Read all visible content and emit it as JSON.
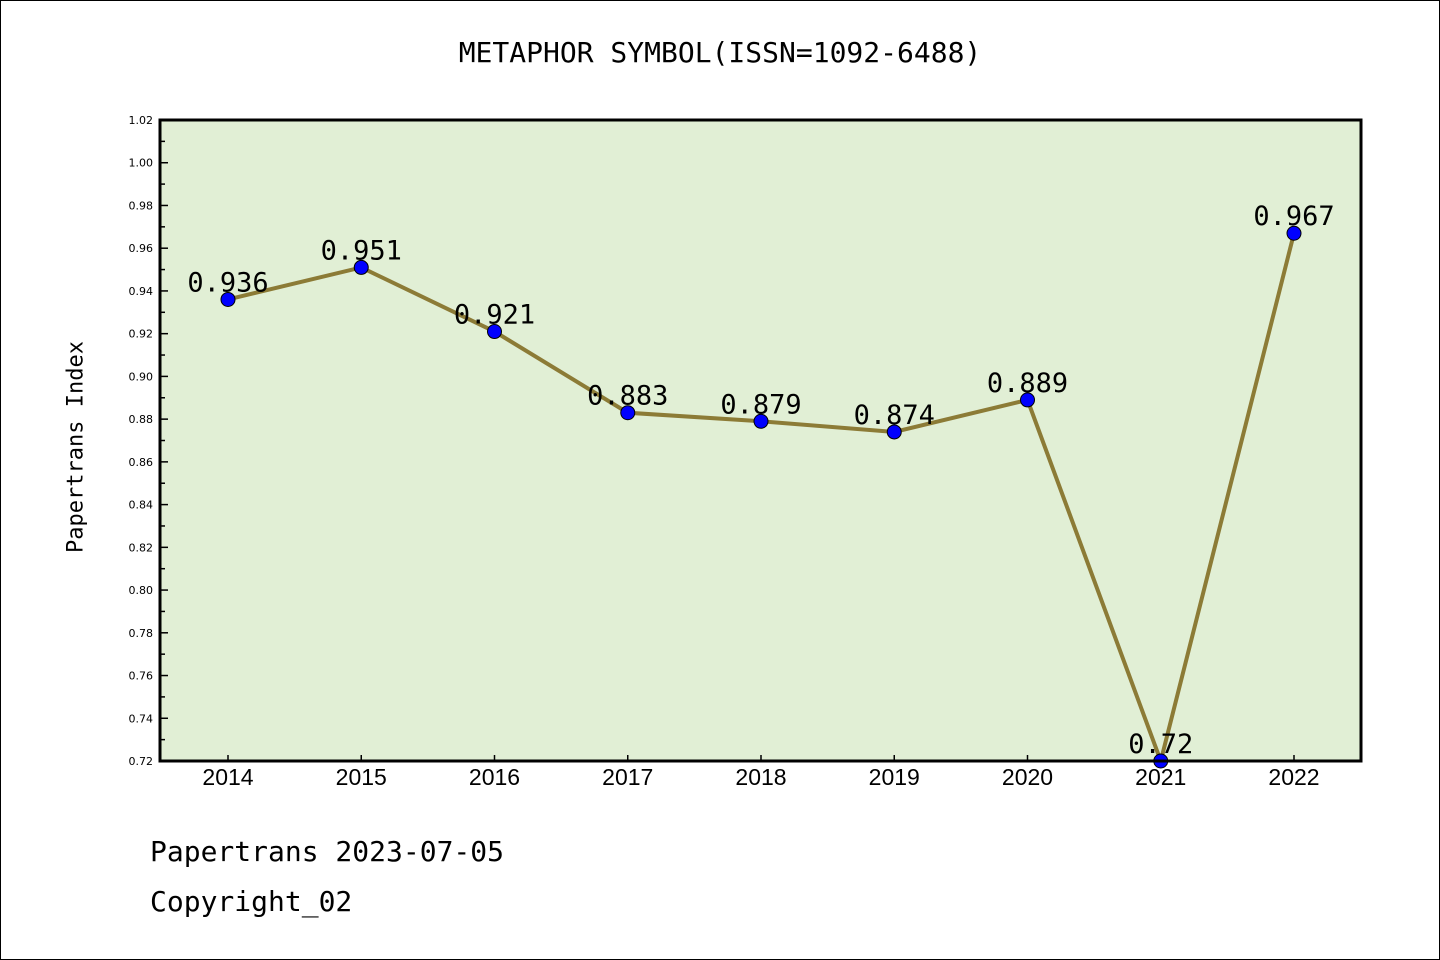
{
  "chart_data": {
    "type": "line",
    "title": "METAPHOR SYMBOL(ISSN=1092-6488)",
    "xlabel": "",
    "ylabel": "Papertrans Index",
    "x": [
      "2014",
      "2015",
      "2016",
      "2017",
      "2018",
      "2019",
      "2020",
      "2021",
      "2022"
    ],
    "values": [
      0.936,
      0.951,
      0.921,
      0.883,
      0.879,
      0.874,
      0.889,
      0.72,
      0.967
    ],
    "labels": [
      "0.936",
      "0.951",
      "0.921",
      "0.883",
      "0.879",
      "0.874",
      "0.889",
      "0.72",
      "0.967"
    ],
    "ylim": [
      0.72,
      1.02
    ],
    "yticks": [
      "0.72",
      "0.74",
      "0.76",
      "0.78",
      "0.80",
      "0.82",
      "0.84",
      "0.86",
      "0.88",
      "0.90",
      "0.92",
      "0.94",
      "0.96",
      "0.98",
      "1.00",
      "1.02"
    ],
    "grid": false,
    "colors": {
      "line": "#8c7b36",
      "marker": "#0000ff",
      "background": "#e1efd5"
    }
  },
  "footer": {
    "line1": "Papertrans 2023-07-05",
    "line2": "Copyright_02"
  }
}
